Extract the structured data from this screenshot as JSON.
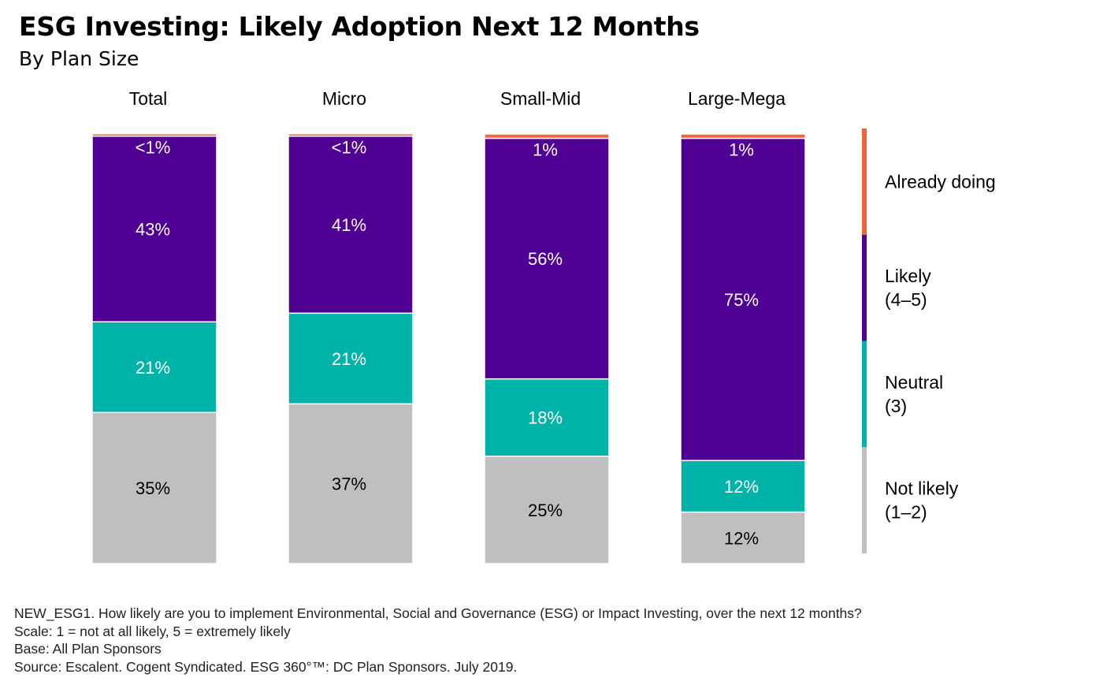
{
  "title": "ESG Investing: Likely Adoption Next 12 Months",
  "subtitle": "By Plan Size",
  "chart_data": {
    "type": "bar",
    "stacked": true,
    "percent_scale": true,
    "categories": [
      "Total",
      "Micro",
      "Small-Mid",
      "Large-Mega"
    ],
    "series": [
      {
        "name": "Not likely",
        "legend_lines": [
          "Not likely",
          "(1–2)"
        ],
        "color": "#BFBFBF",
        "label_color": "#000000",
        "values": [
          35,
          37,
          25,
          12
        ],
        "labels": [
          "35%",
          "37%",
          "25%",
          "12%"
        ]
      },
      {
        "name": "Neutral",
        "legend_lines": [
          "Neutral",
          "(3)"
        ],
        "color": "#00B3A8",
        "label_color": "#FFFFFF",
        "values": [
          21,
          21,
          18,
          12
        ],
        "labels": [
          "21%",
          "21%",
          "18%",
          "12%"
        ]
      },
      {
        "name": "Likely",
        "legend_lines": [
          "Likely",
          "(4–5)"
        ],
        "color": "#4F0093",
        "label_color": "#FFFFFF",
        "values": [
          43,
          41,
          56,
          75
        ],
        "labels": [
          "43%",
          "41%",
          "56%",
          "75%"
        ]
      },
      {
        "name": "Already doing",
        "legend_lines": [
          "Already doing"
        ],
        "color": "#F2643C",
        "label_color": "#FFFFFF",
        "values": [
          0.5,
          0.5,
          1,
          1
        ],
        "labels": [
          "<1%",
          "<1%",
          "1%",
          "1%"
        ],
        "label_position": "top"
      }
    ],
    "legend_position": "right",
    "grid": false
  },
  "footnotes": [
    "NEW_ESG1. How likely are you to implement Environmental, Social and Governance (ESG) or Impact Investing, over the next 12 months?",
    "Scale: 1 = not at all likely, 5 = extremely likely",
    "Base: All Plan Sponsors",
    "Source: Escalent. Cogent Syndicated. ESG 360°™: DC Plan Sponsors. July 2019."
  ]
}
